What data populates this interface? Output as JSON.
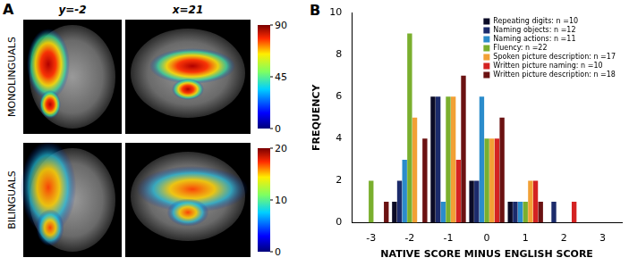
{
  "panel_a": {
    "label": "A",
    "columns": [
      "y=-2",
      "x=21"
    ],
    "rows": [
      {
        "name": "MONOLINGUALS",
        "colorbar": {
          "range": [
            0,
            90
          ],
          "ticks": [
            0,
            45,
            90
          ]
        }
      },
      {
        "name": "BILINGUALS",
        "colorbar": {
          "range": [
            0,
            20
          ],
          "ticks": [
            0,
            10,
            20
          ]
        }
      }
    ]
  },
  "chart_data": {
    "panel_label": "B",
    "type": "bar",
    "categories": [
      "-3",
      "-2",
      "-1",
      "0",
      "1",
      "2",
      "3"
    ],
    "x_label": "NATIVE SCORE MINUS ENGLISH SCORE",
    "y_label": "FREQUENCY",
    "ylim": [
      0,
      10
    ],
    "yticks": [
      0,
      2,
      4,
      6,
      8,
      10
    ],
    "grid": false,
    "legend": "upper right",
    "series": [
      {
        "name": "Repeating digits: n =10",
        "color": "#0b0b26",
        "values": [
          0,
          1,
          6,
          2,
          1,
          0,
          0
        ]
      },
      {
        "name": "Naming objects: n =12",
        "color": "#1c2b6b",
        "values": [
          0,
          2,
          6,
          2,
          1,
          1,
          0
        ]
      },
      {
        "name": "Naming actions: n =11",
        "color": "#2b8ccb",
        "values": [
          0,
          3,
          1,
          6,
          1,
          0,
          0
        ]
      },
      {
        "name": "Fluency: n =22",
        "color": "#7aaf2e",
        "values": [
          2,
          9,
          6,
          4,
          1,
          0,
          0
        ]
      },
      {
        "name": "Spoken picture description: n =17",
        "color": "#f2a035",
        "values": [
          0,
          5,
          6,
          4,
          2,
          0,
          0
        ]
      },
      {
        "name": "Written picture naming: n =10",
        "color": "#d42222",
        "values": [
          0,
          0,
          3,
          4,
          2,
          1,
          0
        ]
      },
      {
        "name": "Written picture description: n =18",
        "color": "#6b1212",
        "values": [
          1,
          4,
          7,
          5,
          1,
          0,
          0
        ]
      }
    ]
  }
}
